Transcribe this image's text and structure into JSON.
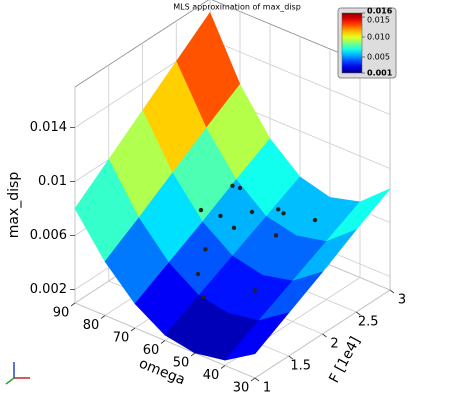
{
  "chart_data": {
    "type": "surface",
    "title": "MLS approximation of max_disp",
    "xlabel": "omega",
    "ylabel": "F [1e4]",
    "zlabel": "max_disp",
    "xlim": [
      30,
      90
    ],
    "ylim": [
      1,
      3
    ],
    "zlim": [
      0.001,
      0.017
    ],
    "xticks": [
      30,
      40,
      50,
      60,
      70,
      80,
      90
    ],
    "yticks": [
      1,
      1.5,
      2,
      2.5,
      3
    ],
    "zticks": [
      0.002,
      0.006,
      0.01,
      0.014
    ],
    "grid": true,
    "colormap": "jet",
    "clim": [
      0.001,
      0.016
    ],
    "colorbar_ticks": [
      {
        "value": 0.016,
        "label": "0.016"
      },
      {
        "value": 0.015,
        "label": "0.015"
      },
      {
        "value": 0.01,
        "label": "0.010"
      },
      {
        "value": 0.005,
        "label": "0.005"
      },
      {
        "value": 0.001,
        "label": "0.001"
      }
    ],
    "surface": {
      "omega": [
        30,
        40,
        50,
        60,
        70,
        80,
        90
      ],
      "F": [
        1,
        1.5,
        2,
        2.5,
        3
      ],
      "z": [
        [
          0.0028,
          0.0014,
          0.001,
          0.0014,
          0.0028,
          0.005,
          0.008
        ],
        [
          0.0042,
          0.0027,
          0.0023,
          0.0027,
          0.0042,
          0.0066,
          0.01
        ],
        [
          0.0056,
          0.004,
          0.0035,
          0.004,
          0.0056,
          0.0083,
          0.012
        ],
        [
          0.0071,
          0.0053,
          0.0048,
          0.0053,
          0.0071,
          0.01,
          0.014
        ],
        [
          0.0085,
          0.0066,
          0.006,
          0.0066,
          0.0085,
          0.0116,
          0.016
        ]
      ]
    },
    "points": {
      "omega": [
        60,
        62,
        66,
        55,
        58,
        64,
        52,
        56,
        60,
        50,
        46,
        58,
        54,
        48
      ],
      "F": [
        2,
        2.2,
        1.8,
        1.8,
        2.2,
        2.0,
        2.4,
        2.5,
        1.6,
        2.2,
        2.6,
        1.4,
        1.3,
        1.8
      ],
      "z": [
        0.0092,
        0.0082,
        0.0075,
        0.0072,
        0.0068,
        0.0066,
        0.0066,
        0.0062,
        0.0058,
        0.0058,
        0.006,
        0.0048,
        0.0038,
        0.0032
      ],
      "color": "#222222"
    }
  }
}
